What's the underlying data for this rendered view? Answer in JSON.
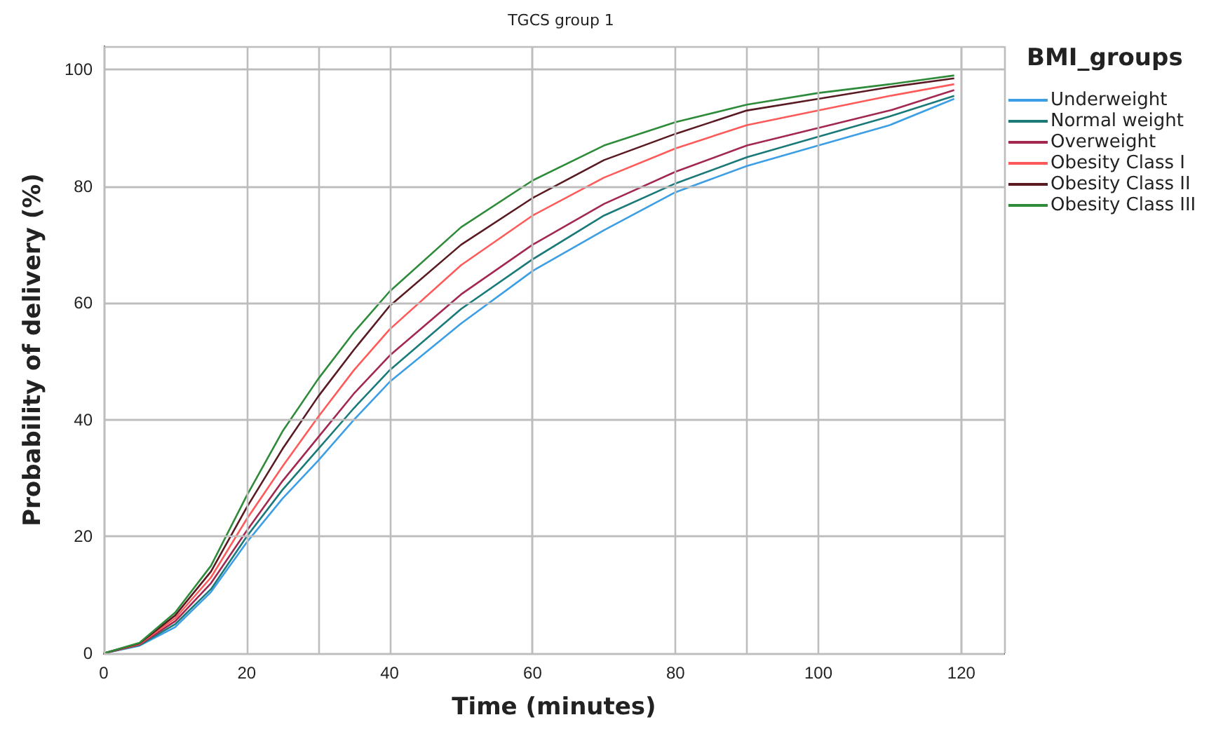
{
  "chart_data": {
    "type": "line",
    "title": "TGCS group 1",
    "xlabel": "Time (minutes)",
    "ylabel": "Probability of delivery (%)",
    "legend_title": "BMI_groups",
    "legend": "right",
    "grid": true,
    "line_style": "solid",
    "marker": "none",
    "x": [
      0,
      5,
      10,
      15,
      20,
      25,
      30,
      35,
      40,
      50,
      60,
      70,
      80,
      90,
      100,
      110,
      119
    ],
    "xlim": [
      0,
      126
    ],
    "xticks": [
      0,
      20,
      40,
      60,
      80,
      100,
      120
    ],
    "ylim": [
      0,
      104
    ],
    "yticks": [
      0,
      20,
      40,
      60,
      80,
      100
    ],
    "series": [
      {
        "name": "Underweight",
        "color": "#3c9ee5",
        "values": [
          0,
          1.3,
          4.5,
          10.5,
          19,
          26.5,
          33,
          40,
          46.5,
          56.5,
          65.5,
          72.5,
          79,
          83.5,
          87,
          90.5,
          95
        ]
      },
      {
        "name": "Normal weight",
        "color": "#1a7a7a",
        "values": [
          0,
          1.4,
          5,
          11,
          20,
          28,
          35,
          42,
          48.5,
          59,
          67.5,
          75,
          80.5,
          85,
          88.5,
          92,
          95.5
        ]
      },
      {
        "name": "Overweight",
        "color": "#a3284f",
        "values": [
          0,
          1.5,
          5.5,
          12,
          21,
          29.5,
          37,
          44.5,
          51,
          61.5,
          70,
          77,
          82.5,
          87,
          90,
          93,
          96.5
        ]
      },
      {
        "name": "Obesity Class I",
        "color": "#ff5a5a",
        "values": [
          0,
          1.6,
          6,
          13,
          23,
          32,
          40.5,
          48.5,
          55.5,
          66.5,
          75,
          81.5,
          86.5,
          90.5,
          93,
          95.5,
          97.5
        ]
      },
      {
        "name": "Obesity Class II",
        "color": "#5a1a22",
        "values": [
          0,
          1.7,
          6.5,
          14,
          25,
          35,
          44,
          52,
          59.5,
          70,
          78,
          84.5,
          89,
          93,
          95,
          97,
          98.5
        ]
      },
      {
        "name": "Obesity Class III",
        "color": "#2e8b3a",
        "values": [
          0,
          1.8,
          7,
          15,
          27,
          38,
          47,
          55,
          62,
          73,
          81,
          87,
          91,
          94,
          96,
          97.5,
          99
        ]
      }
    ]
  }
}
